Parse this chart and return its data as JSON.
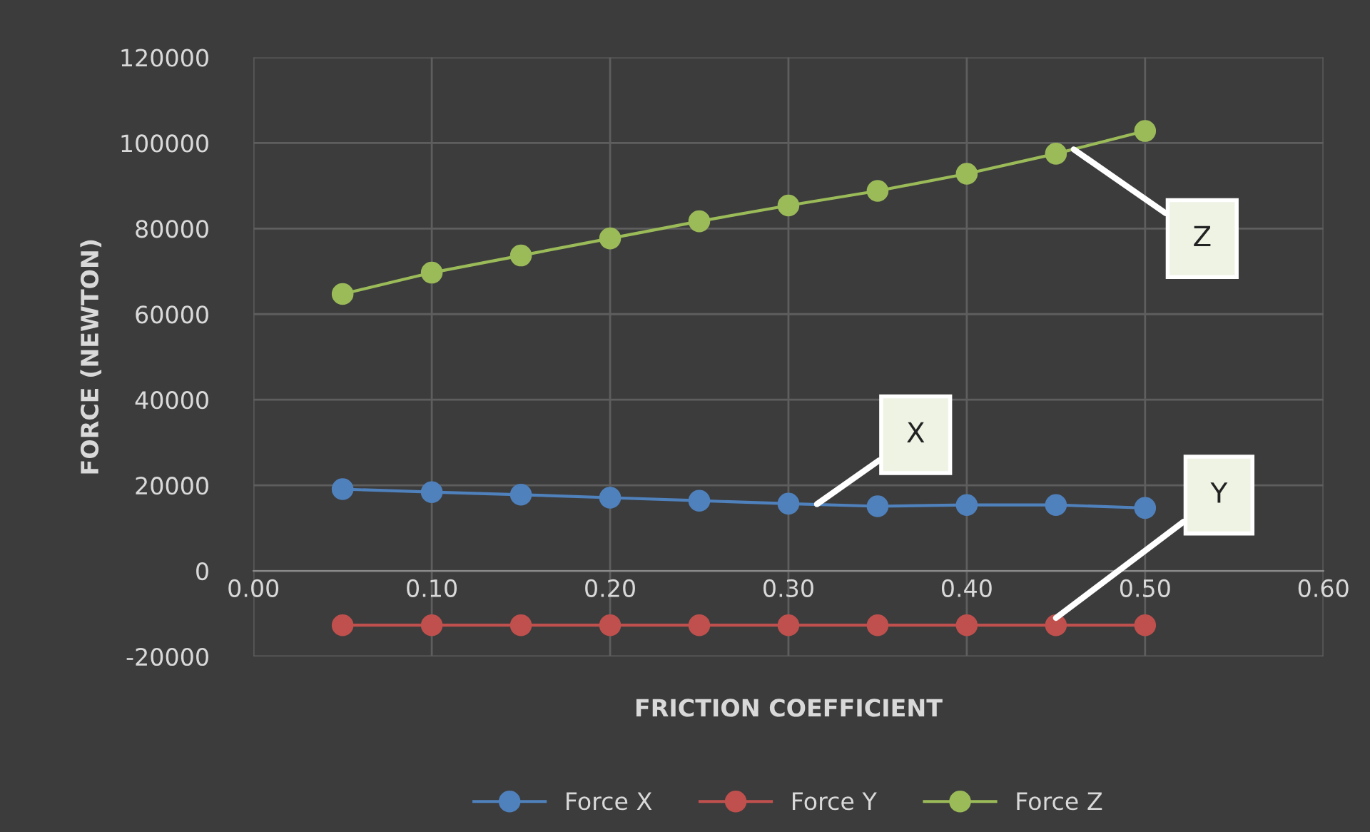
{
  "chart_data": {
    "type": "line",
    "xlabel": "FRICTION COEFFICIENT",
    "ylabel": "FORCE (NEWTON)",
    "x": [
      0.05,
      0.1,
      0.15,
      0.2,
      0.25,
      0.3,
      0.35,
      0.4,
      0.45,
      0.5
    ],
    "series": [
      {
        "name": "Force X",
        "color": "#4f81bd",
        "values": [
          19100,
          18400,
          17800,
          17100,
          16400,
          15700,
          15100,
          15400,
          15400,
          14700
        ]
      },
      {
        "name": "Force Y",
        "color": "#c0504d",
        "values": [
          -12700,
          -12700,
          -12700,
          -12700,
          -12700,
          -12700,
          -12700,
          -12700,
          -12700,
          -12700
        ]
      },
      {
        "name": "Force Z",
        "color": "#9bbb59",
        "values": [
          64700,
          69700,
          73700,
          77700,
          81700,
          85400,
          88800,
          92800,
          97500,
          102800
        ]
      }
    ],
    "xlim": [
      0,
      0.6
    ],
    "xticks": [
      {
        "value": 0,
        "label": "0.00"
      },
      {
        "value": 0.1,
        "label": "0.10"
      },
      {
        "value": 0.2,
        "label": "0.20"
      },
      {
        "value": 0.3,
        "label": "0.30"
      },
      {
        "value": 0.4,
        "label": "0.40"
      },
      {
        "value": 0.5,
        "label": "0.50"
      },
      {
        "value": 0.6,
        "label": "0.60"
      }
    ],
    "ylim": [
      -20000,
      120000
    ],
    "yticks": [
      -20000,
      0,
      20000,
      40000,
      60000,
      80000,
      100000,
      120000
    ],
    "annotations": [
      {
        "text": "Z",
        "x": 0.46,
        "y": 98500
      },
      {
        "text": "X",
        "x": 0.316,
        "y": 15600
      },
      {
        "text": "Y",
        "x": 0.45,
        "y": -11000
      }
    ],
    "grid": true,
    "legend": "bottom",
    "marker": "circle",
    "line_style": "solid"
  }
}
